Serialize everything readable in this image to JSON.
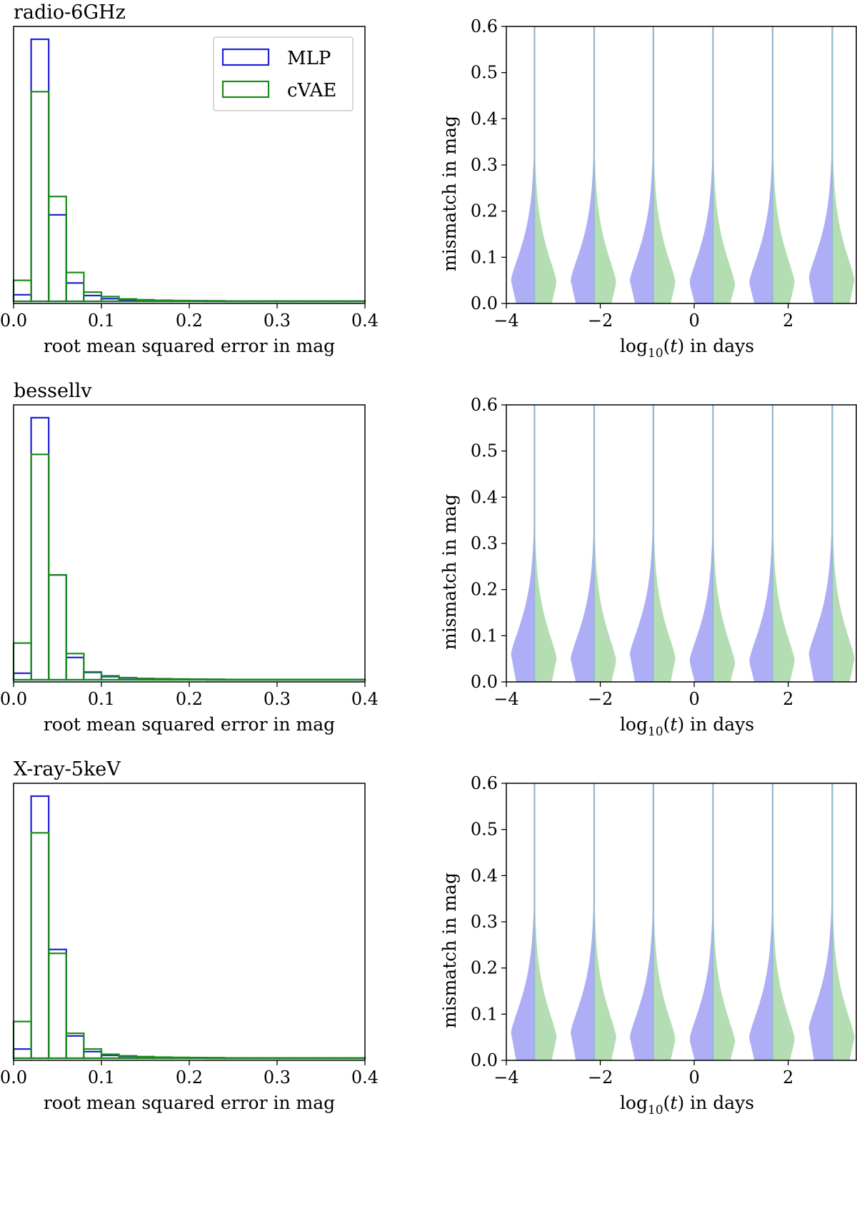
{
  "colors": {
    "mlp": "#1f1fd6",
    "cvae": "#1a8a1a",
    "violin_left": "#aeaef7",
    "violin_right": "#b4ddb4",
    "violin_edge": "#8fb8cf"
  },
  "legend": [
    "MLP",
    "cVAE"
  ],
  "chart_data": [
    {
      "type": "bar",
      "subtype": "step-histogram",
      "title": "radio-6GHz",
      "xlabel": "root mean squared error in mag",
      "ylabel": "",
      "xlim": [
        0,
        0.4
      ],
      "xticks": [
        "0.0",
        "0.1",
        "0.2",
        "0.3",
        "0.4"
      ],
      "bin_edges": [
        0,
        0.02,
        0.04,
        0.06,
        0.08,
        0.1,
        0.12,
        0.14,
        0.16,
        0.18,
        0.2,
        0.22,
        0.24,
        0.26,
        0.28,
        0.3,
        0.32,
        0.34,
        0.36,
        0.38,
        0.4
      ],
      "series": [
        {
          "name": "MLP",
          "values": [
            0.025,
            1.0,
            0.33,
            0.07,
            0.022,
            0.01,
            0.006,
            0.004,
            0.003,
            0.002,
            0.002,
            0.001,
            0.001,
            0.001,
            0.001,
            0.001,
            0.001,
            0.001,
            0.001,
            0.001
          ]
        },
        {
          "name": "cVAE",
          "values": [
            0.08,
            0.8,
            0.4,
            0.11,
            0.035,
            0.018,
            0.009,
            0.006,
            0.004,
            0.003,
            0.002,
            0.002,
            0.001,
            0.001,
            0.001,
            0.001,
            0.001,
            0.001,
            0.001,
            0.001
          ]
        }
      ]
    },
    {
      "type": "violin",
      "title": "",
      "xlabel": "log10(t) in days",
      "ylabel": "mismatch in mag",
      "xlim": [
        -4.0,
        3.45
      ],
      "ylim": [
        0,
        0.6
      ],
      "xticks": [
        "−4",
        "−2",
        "0",
        "2"
      ],
      "yticks": [
        "0.0",
        "0.1",
        "0.2",
        "0.3",
        "0.4",
        "0.5",
        "0.6"
      ],
      "positions": [
        -3.4,
        -2.13,
        -0.87,
        0.4,
        1.67,
        2.94
      ],
      "series": [
        {
          "name": "MLP",
          "peak": [
            0.05,
            0.05,
            0.05,
            0.045,
            0.045,
            0.055
          ]
        },
        {
          "name": "cVAE",
          "peak": [
            0.045,
            0.045,
            0.045,
            0.04,
            0.045,
            0.05
          ]
        }
      ]
    },
    {
      "type": "bar",
      "subtype": "step-histogram",
      "title": "bessellv",
      "xlabel": "root mean squared error in mag",
      "ylabel": "",
      "xlim": [
        0,
        0.4
      ],
      "xticks": [
        "0.0",
        "0.1",
        "0.2",
        "0.3",
        "0.4"
      ],
      "bin_edges": [
        0,
        0.02,
        0.04,
        0.06,
        0.08,
        0.1,
        0.12,
        0.14,
        0.16,
        0.18,
        0.2,
        0.22,
        0.24,
        0.26,
        0.28,
        0.3,
        0.32,
        0.34,
        0.36,
        0.38,
        0.4
      ],
      "series": [
        {
          "name": "MLP",
          "values": [
            0.025,
            1.0,
            0.4,
            0.085,
            0.028,
            0.012,
            0.007,
            0.005,
            0.003,
            0.002,
            0.002,
            0.001,
            0.001,
            0.001,
            0.001,
            0.001,
            0.001,
            0.001,
            0.001,
            0.001
          ]
        },
        {
          "name": "cVAE",
          "values": [
            0.14,
            0.86,
            0.4,
            0.1,
            0.03,
            0.015,
            0.008,
            0.005,
            0.004,
            0.003,
            0.002,
            0.002,
            0.001,
            0.001,
            0.001,
            0.001,
            0.001,
            0.001,
            0.001,
            0.001
          ]
        }
      ]
    },
    {
      "type": "violin",
      "title": "",
      "xlabel": "log10(t) in days",
      "ylabel": "mismatch in mag",
      "xlim": [
        -4.0,
        3.45
      ],
      "ylim": [
        0,
        0.6
      ],
      "xticks": [
        "−4",
        "−2",
        "0",
        "2"
      ],
      "yticks": [
        "0.0",
        "0.1",
        "0.2",
        "0.3",
        "0.4",
        "0.5",
        "0.6"
      ],
      "positions": [
        -3.4,
        -2.13,
        -0.87,
        0.4,
        1.67,
        2.94
      ],
      "series": [
        {
          "name": "MLP",
          "peak": [
            0.06,
            0.05,
            0.06,
            0.045,
            0.045,
            0.06
          ]
        },
        {
          "name": "cVAE",
          "peak": [
            0.05,
            0.045,
            0.05,
            0.04,
            0.045,
            0.05
          ]
        }
      ]
    },
    {
      "type": "bar",
      "subtype": "step-histogram",
      "title": "X-ray-5keV",
      "xlabel": "root mean squared error in mag",
      "ylabel": "",
      "xlim": [
        0,
        0.4
      ],
      "xticks": [
        "0.0",
        "0.1",
        "0.2",
        "0.3",
        "0.4"
      ],
      "bin_edges": [
        0,
        0.02,
        0.04,
        0.06,
        0.08,
        0.1,
        0.12,
        0.14,
        0.16,
        0.18,
        0.2,
        0.22,
        0.24,
        0.26,
        0.28,
        0.3,
        0.32,
        0.34,
        0.36,
        0.38,
        0.4
      ],
      "series": [
        {
          "name": "MLP",
          "values": [
            0.035,
            1.0,
            0.415,
            0.085,
            0.025,
            0.011,
            0.007,
            0.005,
            0.003,
            0.002,
            0.002,
            0.001,
            0.001,
            0.001,
            0.001,
            0.001,
            0.001,
            0.001,
            0.001,
            0.001
          ]
        },
        {
          "name": "cVAE",
          "values": [
            0.14,
            0.86,
            0.4,
            0.095,
            0.035,
            0.015,
            0.009,
            0.006,
            0.004,
            0.003,
            0.002,
            0.002,
            0.001,
            0.001,
            0.001,
            0.001,
            0.001,
            0.001,
            0.001,
            0.001
          ]
        }
      ]
    },
    {
      "type": "violin",
      "title": "",
      "xlabel": "log10(t) in days",
      "ylabel": "mismatch in mag",
      "xlim": [
        -4.0,
        3.45
      ],
      "ylim": [
        0,
        0.6
      ],
      "xticks": [
        "−4",
        "−2",
        "0",
        "2"
      ],
      "yticks": [
        "0.0",
        "0.1",
        "0.2",
        "0.3",
        "0.4",
        "0.5",
        "0.6"
      ],
      "positions": [
        -3.4,
        -2.13,
        -0.87,
        0.4,
        1.67,
        2.94
      ],
      "series": [
        {
          "name": "MLP",
          "peak": [
            0.06,
            0.06,
            0.05,
            0.045,
            0.05,
            0.07
          ]
        },
        {
          "name": "cVAE",
          "peak": [
            0.05,
            0.05,
            0.045,
            0.04,
            0.045,
            0.05
          ]
        }
      ]
    }
  ]
}
